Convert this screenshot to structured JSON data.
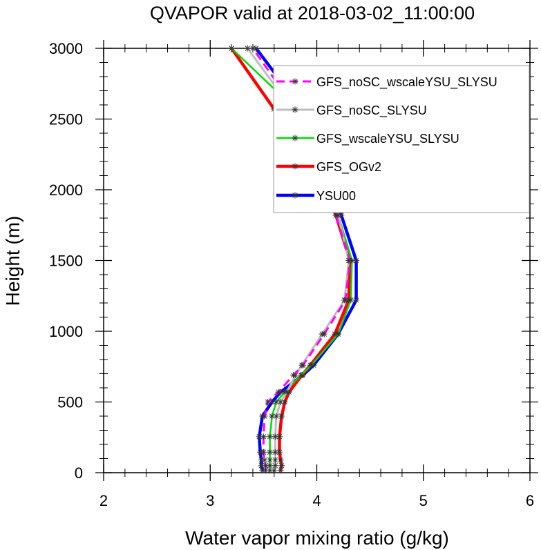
{
  "chart_data": {
    "type": "line",
    "title": "QVAPOR valid at 2018-03-02_11:00:00",
    "xlabel": "Water vapor mixing ratio (g/kg)",
    "ylabel": "Height (m)",
    "xlim": [
      2,
      6
    ],
    "ylim": [
      0,
      3000
    ],
    "xticks": [
      2,
      3,
      4,
      5,
      6
    ],
    "yticks": [
      0,
      500,
      1000,
      1500,
      2000,
      2500,
      3000
    ],
    "grid": false,
    "legend_position": "top-right",
    "series": [
      {
        "name": "GFS_noSC_wscaleYSU_SLYSU",
        "color": "#ff00ff",
        "dash": true,
        "width": 3,
        "x": [
          3.52,
          3.52,
          3.51,
          3.5,
          3.5,
          3.51,
          3.54,
          3.64,
          3.78,
          3.87,
          4.07,
          4.27,
          4.31,
          4.18,
          3.98,
          3.8,
          3.4
        ],
        "y": [
          15,
          50,
          90,
          145,
          255,
          400,
          500,
          570,
          690,
          760,
          980,
          1220,
          1500,
          1820,
          2200,
          2570,
          3000
        ]
      },
      {
        "name": "GFS_noSC_SLYSU",
        "color": "#bdbdbd",
        "dash": false,
        "width": 3,
        "x": [
          3.6,
          3.61,
          3.61,
          3.61,
          3.61,
          3.62,
          3.66,
          3.72,
          3.8,
          3.86,
          4.05,
          4.26,
          4.3,
          4.2,
          4.0,
          3.77,
          3.35
        ],
        "y": [
          15,
          50,
          90,
          145,
          255,
          400,
          500,
          570,
          690,
          760,
          980,
          1220,
          1500,
          1820,
          2200,
          2570,
          3000
        ]
      },
      {
        "name": "GFS_wscaleYSU_SLYSU",
        "color": "#00dd00",
        "dash": false,
        "width": 2.5,
        "x": [
          3.56,
          3.56,
          3.56,
          3.56,
          3.56,
          3.58,
          3.62,
          3.7,
          3.85,
          3.95,
          4.2,
          4.32,
          4.33,
          4.2,
          3.97,
          3.8,
          3.2
        ],
        "y": [
          15,
          50,
          90,
          145,
          255,
          400,
          500,
          570,
          690,
          760,
          980,
          1220,
          1500,
          1820,
          2200,
          2570,
          3000
        ]
      },
      {
        "name": "GFS_OGv2",
        "color": "#ff0000",
        "dash": false,
        "width": 4.5,
        "x": [
          3.66,
          3.67,
          3.66,
          3.65,
          3.65,
          3.67,
          3.7,
          3.74,
          3.86,
          3.94,
          4.17,
          4.3,
          4.31,
          4.18,
          3.95,
          3.6,
          3.2
        ],
        "y": [
          15,
          50,
          90,
          145,
          255,
          400,
          500,
          570,
          690,
          760,
          980,
          1220,
          1500,
          1820,
          2200,
          2570,
          3000
        ]
      },
      {
        "name": "YSU00",
        "color": "#0000ff",
        "dash": false,
        "width": 4.5,
        "x": [
          3.49,
          3.48,
          3.48,
          3.47,
          3.46,
          3.49,
          3.58,
          3.66,
          3.87,
          3.97,
          4.2,
          4.37,
          4.37,
          4.23,
          4.05,
          3.86,
          3.43
        ],
        "y": [
          15,
          50,
          90,
          145,
          255,
          400,
          500,
          570,
          690,
          760,
          980,
          1220,
          1500,
          1820,
          2200,
          2570,
          3000
        ]
      }
    ]
  }
}
